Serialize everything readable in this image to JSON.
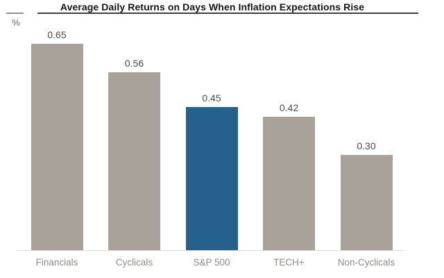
{
  "chart_data": {
    "type": "bar",
    "title": "Average Daily Returns on Days When Inflation Expectations Rise",
    "categories": [
      "Financials",
      "Cyclicals",
      "S&P 500",
      "TECH+",
      "Non-Cyclicals"
    ],
    "values": [
      0.65,
      0.56,
      0.45,
      0.42,
      0.3
    ],
    "value_labels": [
      "0.65",
      "0.56",
      "0.45",
      "0.42",
      "0.30"
    ],
    "xlabel": "",
    "ylabel": "%",
    "ylim": [
      0,
      0.78
    ],
    "grid": false,
    "legend": false,
    "highlight_category": "S&P 500",
    "colors": {
      "default_bar": "#a9a29b",
      "highlight_bar": "#26608c",
      "value_label": "#4a4a4a",
      "category_label": "#8f8d8b",
      "baseline": "#d9d9d9",
      "title_text": "#141414",
      "title_rule": "#3e3e3e",
      "unit_rule": "#8f8f8f",
      "unit_label": "#6a6a6a"
    }
  }
}
